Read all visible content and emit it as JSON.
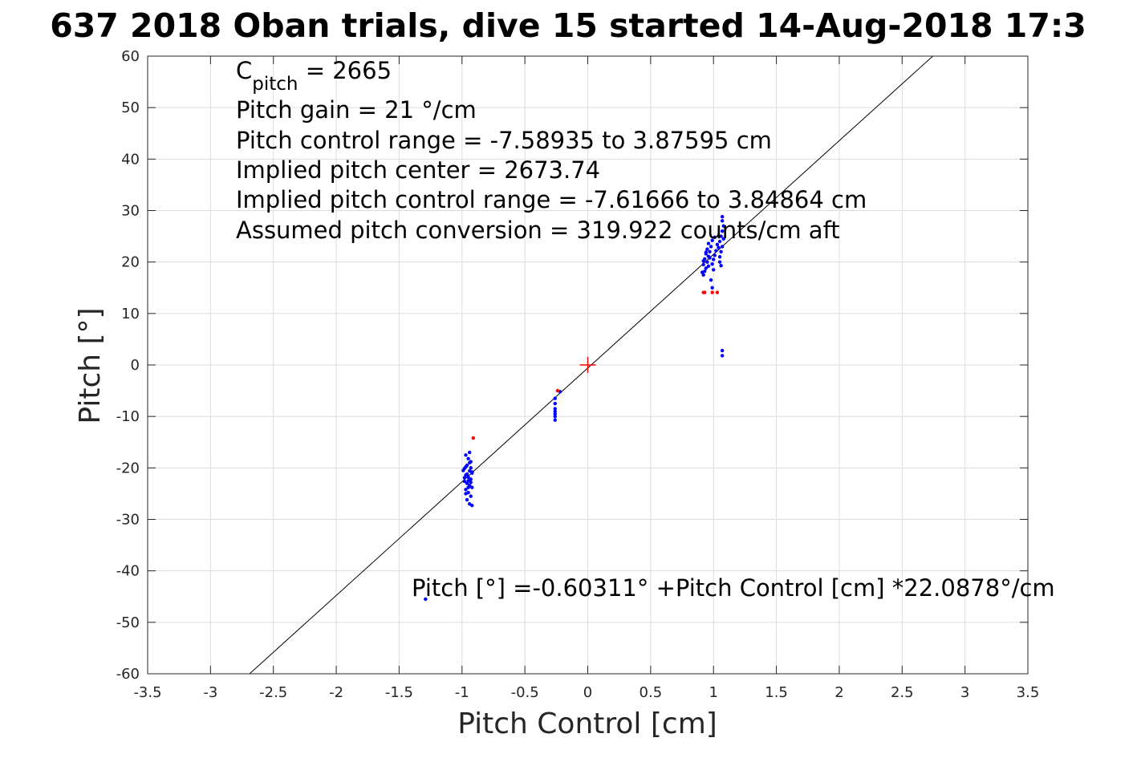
{
  "chart_data": {
    "type": "scatter",
    "title": "637 2018 Oban trials, dive 15 started 14-Aug-2018 17:3",
    "xlabel": "Pitch Control [cm]",
    "ylabel": "Pitch [°]",
    "xlim": [
      -3.5,
      3.5
    ],
    "ylim": [
      -60,
      60
    ],
    "xticks": [
      -3.5,
      -3,
      -2.5,
      -2,
      -1.5,
      -1,
      -0.5,
      0,
      0.5,
      1,
      1.5,
      2,
      2.5,
      3,
      3.5
    ],
    "yticks": [
      -60,
      -50,
      -40,
      -30,
      -20,
      -10,
      0,
      10,
      20,
      30,
      40,
      50,
      60
    ],
    "xtick_labels": [
      "-3.5",
      "-3",
      "-2.5",
      "-2",
      "-1.5",
      "-1",
      "-0.5",
      "0",
      "0.5",
      "1",
      "1.5",
      "2",
      "2.5",
      "3",
      "3.5"
    ],
    "ytick_labels": [
      "-60",
      "-50",
      "-40",
      "-30",
      "-20",
      "-10",
      "0",
      "10",
      "20",
      "30",
      "40",
      "50",
      "60"
    ],
    "grid": true,
    "annotations": {
      "cpitch_base": "C",
      "cpitch_sub": "pitch",
      "cpitch_value": " = 2665",
      "line2": "Pitch gain = 21 °/cm",
      "line3": "Pitch control range = -7.58935 to 3.87595 cm",
      "line4": "Implied pitch center = 2673.74",
      "line5": "Implied pitch control range = -7.61666 to 3.84864 cm",
      "line6": "Assumed pitch conversion = 319.922 counts/cm aft",
      "fit_text": "Pitch [°] =-0.60311° +Pitch Control [cm] *22.0878°/cm"
    },
    "fit_line": {
      "intercept": -0.60311,
      "slope": 22.0878,
      "color": "#000000"
    },
    "center_marker": {
      "x": 0,
      "y": 0,
      "color": "#ff0000"
    },
    "series": [
      {
        "color": "#0000ff",
        "points": [
          [
            -0.97,
            -17.5
          ],
          [
            -0.95,
            -18.2
          ],
          [
            -0.93,
            -18.8
          ],
          [
            -0.96,
            -19.5
          ],
          [
            -0.98,
            -20.1
          ],
          [
            -0.94,
            -20.6
          ],
          [
            -0.92,
            -21.0
          ],
          [
            -0.97,
            -21.4
          ],
          [
            -0.95,
            -21.8
          ],
          [
            -0.93,
            -22.2
          ],
          [
            -0.98,
            -22.6
          ],
          [
            -0.96,
            -23.0
          ],
          [
            -0.94,
            -23.4
          ],
          [
            -0.92,
            -23.8
          ],
          [
            -0.97,
            -24.2
          ],
          [
            -0.95,
            -24.8
          ],
          [
            -0.93,
            -25.5
          ],
          [
            -0.96,
            -26.2
          ],
          [
            -0.94,
            -27.0
          ],
          [
            -0.92,
            -27.3
          ],
          [
            -0.99,
            -20.5
          ],
          [
            -0.97,
            -19.8
          ],
          [
            -0.95,
            -22.5
          ],
          [
            -0.93,
            -20.0
          ],
          [
            -0.96,
            -21.2
          ],
          [
            -0.94,
            -19.0
          ],
          [
            -0.98,
            -21.9
          ],
          [
            -0.93,
            -22.8
          ],
          [
            -0.95,
            -23.8
          ],
          [
            -0.97,
            -25.0
          ],
          [
            -0.92,
            -20.8
          ],
          [
            -0.94,
            -17.0
          ],
          [
            -0.26,
            -6.5
          ],
          [
            -0.26,
            -7.5
          ],
          [
            -0.26,
            -8.5
          ],
          [
            -0.26,
            -9.0
          ],
          [
            -0.26,
            -9.5
          ],
          [
            -0.26,
            -10.0
          ],
          [
            -0.26,
            -10.7
          ],
          [
            -0.22,
            -5.2
          ],
          [
            0.92,
            17.5
          ],
          [
            0.93,
            18.2
          ],
          [
            0.94,
            18.8
          ],
          [
            0.92,
            19.5
          ],
          [
            0.95,
            20.0
          ],
          [
            0.93,
            20.6
          ],
          [
            0.96,
            21.1
          ],
          [
            0.94,
            21.6
          ],
          [
            0.97,
            22.0
          ],
          [
            0.95,
            22.5
          ],
          [
            0.98,
            23.0
          ],
          [
            0.96,
            23.6
          ],
          [
            0.99,
            24.2
          ],
          [
            1.0,
            20.5
          ],
          [
            1.01,
            21.3
          ],
          [
            1.02,
            22.2
          ],
          [
            0.99,
            19.6
          ],
          [
            1.0,
            18.5
          ],
          [
            0.98,
            16.5
          ],
          [
            0.99,
            15.0
          ],
          [
            1.05,
            21.0
          ],
          [
            1.06,
            22.0
          ],
          [
            1.07,
            23.0
          ],
          [
            1.05,
            24.0
          ],
          [
            1.06,
            25.0
          ],
          [
            1.07,
            26.0
          ],
          [
            1.08,
            27.0
          ],
          [
            1.07,
            28.0
          ],
          [
            1.07,
            28.8
          ],
          [
            1.05,
            20.0
          ],
          [
            1.06,
            19.3
          ],
          [
            1.08,
            24.5
          ],
          [
            1.04,
            22.8
          ],
          [
            0.91,
            18.0
          ],
          [
            0.92,
            20.2
          ],
          [
            0.94,
            21.9
          ],
          [
            0.96,
            19.2
          ],
          [
            0.97,
            20.8
          ],
          [
            1.01,
            24.8
          ],
          [
            1.03,
            23.4
          ],
          [
            1.07,
            2.8
          ],
          [
            1.07,
            1.8
          ],
          [
            -1.29,
            -45.5
          ]
        ]
      },
      {
        "color": "#ff0000",
        "points": [
          [
            -0.91,
            -14.2
          ],
          [
            -0.24,
            -5.0
          ],
          [
            0.92,
            14.1
          ],
          [
            0.93,
            14.1
          ],
          [
            0.99,
            14.1
          ],
          [
            1.03,
            14.1
          ]
        ]
      }
    ]
  }
}
